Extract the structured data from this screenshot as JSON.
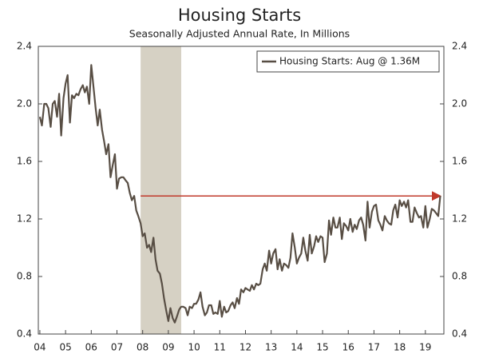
{
  "chart_data": {
    "type": "line",
    "title": "Housing Starts",
    "subtitle": "Seasonally Adjusted Annual Rate, In Millions",
    "x": [
      2004,
      2004.08,
      2004.17,
      2004.25,
      2004.33,
      2004.42,
      2004.5,
      2004.58,
      2004.67,
      2004.75,
      2004.83,
      2004.92,
      2005,
      2005.08,
      2005.17,
      2005.25,
      2005.33,
      2005.42,
      2005.5,
      2005.58,
      2005.67,
      2005.75,
      2005.83,
      2005.92,
      2006,
      2006.08,
      2006.17,
      2006.25,
      2006.33,
      2006.42,
      2006.5,
      2006.58,
      2006.67,
      2006.75,
      2006.83,
      2006.92,
      2007,
      2007.08,
      2007.17,
      2007.25,
      2007.33,
      2007.42,
      2007.5,
      2007.58,
      2007.67,
      2007.75,
      2007.83,
      2007.92,
      2008,
      2008.08,
      2008.17,
      2008.25,
      2008.33,
      2008.42,
      2008.5,
      2008.58,
      2008.67,
      2008.75,
      2008.83,
      2008.92,
      2009,
      2009.08,
      2009.17,
      2009.25,
      2009.33,
      2009.42,
      2009.5,
      2009.58,
      2009.67,
      2009.75,
      2009.83,
      2009.92,
      2010,
      2010.08,
      2010.17,
      2010.25,
      2010.33,
      2010.42,
      2010.5,
      2010.58,
      2010.67,
      2010.75,
      2010.83,
      2010.92,
      2011,
      2011.08,
      2011.17,
      2011.25,
      2011.33,
      2011.42,
      2011.5,
      2011.58,
      2011.67,
      2011.75,
      2011.83,
      2011.92,
      2012,
      2012.08,
      2012.17,
      2012.25,
      2012.33,
      2012.42,
      2012.5,
      2012.58,
      2012.67,
      2012.75,
      2012.83,
      2012.92,
      2013,
      2013.08,
      2013.17,
      2013.25,
      2013.33,
      2013.42,
      2013.5,
      2013.58,
      2013.67,
      2013.75,
      2013.83,
      2013.92,
      2014,
      2014.08,
      2014.17,
      2014.25,
      2014.33,
      2014.42,
      2014.5,
      2014.58,
      2014.67,
      2014.75,
      2014.83,
      2014.92,
      2015,
      2015.08,
      2015.17,
      2015.25,
      2015.33,
      2015.42,
      2015.5,
      2015.58,
      2015.67,
      2015.75,
      2015.83,
      2015.92,
      2016,
      2016.08,
      2016.17,
      2016.25,
      2016.33,
      2016.42,
      2016.5,
      2016.58,
      2016.67,
      2016.75,
      2016.83,
      2016.92,
      2017,
      2017.08,
      2017.17,
      2017.25,
      2017.33,
      2017.42,
      2017.5,
      2017.58,
      2017.67,
      2017.75,
      2017.83,
      2017.92,
      2018,
      2018.08,
      2018.17,
      2018.25,
      2018.33,
      2018.42,
      2018.5,
      2018.58,
      2018.67,
      2018.75,
      2018.83,
      2018.92,
      2019,
      2019.08,
      2019.17,
      2019.25,
      2019.33,
      2019.42,
      2019.5,
      2019.58
    ],
    "series": [
      {
        "name": "Housing Starts: Aug @ 1.36M",
        "color": "#584e44",
        "values": [
          1.91,
          1.85,
          2.0,
          2.0,
          1.97,
          1.84,
          2.0,
          2.02,
          1.91,
          2.07,
          1.78,
          2.04,
          2.14,
          2.2,
          1.87,
          2.06,
          2.04,
          2.07,
          2.06,
          2.1,
          2.13,
          2.08,
          2.12,
          2.0,
          2.27,
          2.13,
          1.97,
          1.85,
          1.96,
          1.82,
          1.74,
          1.65,
          1.72,
          1.49,
          1.57,
          1.65,
          1.41,
          1.48,
          1.49,
          1.49,
          1.47,
          1.45,
          1.38,
          1.33,
          1.36,
          1.26,
          1.22,
          1.17,
          1.08,
          1.1,
          1.0,
          1.02,
          0.97,
          1.07,
          0.92,
          0.84,
          0.82,
          0.75,
          0.65,
          0.56,
          0.49,
          0.58,
          0.51,
          0.48,
          0.52,
          0.57,
          0.59,
          0.59,
          0.58,
          0.53,
          0.59,
          0.58,
          0.61,
          0.61,
          0.64,
          0.69,
          0.59,
          0.53,
          0.55,
          0.6,
          0.6,
          0.54,
          0.55,
          0.54,
          0.63,
          0.52,
          0.59,
          0.55,
          0.56,
          0.6,
          0.62,
          0.58,
          0.65,
          0.61,
          0.71,
          0.69,
          0.72,
          0.71,
          0.7,
          0.74,
          0.71,
          0.75,
          0.74,
          0.75,
          0.85,
          0.89,
          0.84,
          0.98,
          0.89,
          0.96,
          0.99,
          0.85,
          0.92,
          0.84,
          0.89,
          0.88,
          0.86,
          0.93,
          1.1,
          1.0,
          0.89,
          0.93,
          0.96,
          1.07,
          0.98,
          0.91,
          1.09,
          0.96,
          1.01,
          1.08,
          1.04,
          1.08,
          1.07,
          0.9,
          0.96,
          1.19,
          1.09,
          1.21,
          1.14,
          1.14,
          1.21,
          1.06,
          1.17,
          1.15,
          1.12,
          1.2,
          1.11,
          1.16,
          1.13,
          1.19,
          1.21,
          1.16,
          1.05,
          1.32,
          1.14,
          1.25,
          1.29,
          1.3,
          1.19,
          1.16,
          1.12,
          1.22,
          1.19,
          1.17,
          1.16,
          1.26,
          1.3,
          1.21,
          1.33,
          1.29,
          1.32,
          1.28,
          1.33,
          1.18,
          1.18,
          1.28,
          1.24,
          1.21,
          1.22,
          1.14,
          1.29,
          1.14,
          1.2,
          1.27,
          1.26,
          1.24,
          1.22,
          1.36
        ]
      }
    ],
    "xlim": [
      2003.94,
      2019.72
    ],
    "xticks": [
      {
        "value": 2004,
        "label": "04"
      },
      {
        "value": 2005,
        "label": "05"
      },
      {
        "value": 2006,
        "label": "06"
      },
      {
        "value": 2007,
        "label": "07"
      },
      {
        "value": 2008,
        "label": "08"
      },
      {
        "value": 2009,
        "label": "09"
      },
      {
        "value": 2010,
        "label": "10"
      },
      {
        "value": 2011,
        "label": "11"
      },
      {
        "value": 2012,
        "label": "12"
      },
      {
        "value": 2013,
        "label": "13"
      },
      {
        "value": 2014,
        "label": "14"
      },
      {
        "value": 2015,
        "label": "15"
      },
      {
        "value": 2016,
        "label": "16"
      },
      {
        "value": 2017,
        "label": "17"
      },
      {
        "value": 2018,
        "label": "18"
      },
      {
        "value": 2019,
        "label": "19"
      }
    ],
    "ylim": [
      0.4,
      2.4
    ],
    "yticks": [
      0.4,
      0.8,
      1.2,
      1.6,
      {
        "value": 2,
        "label": "2.0"
      },
      2.4
    ],
    "recession": [
      2007.92,
      2009.5
    ],
    "reference_line": {
      "value": 1.36,
      "x": [
        2007.92,
        2019.58
      ],
      "color": "#c0392b"
    },
    "legend": "upper right"
  }
}
